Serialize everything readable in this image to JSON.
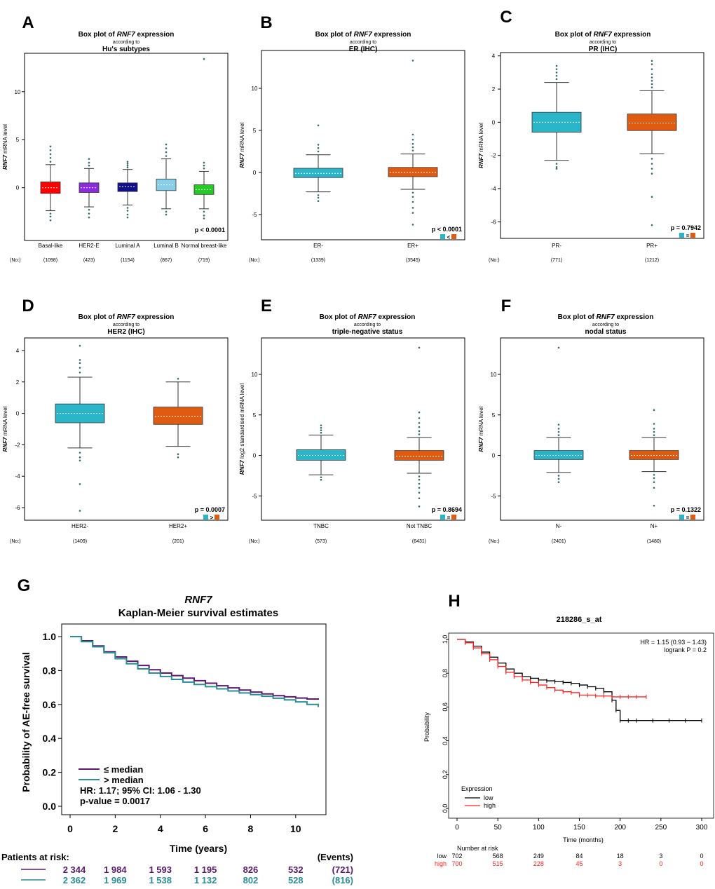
{
  "colors": {
    "red": "#ff0000",
    "purple": "#8a2be2",
    "navy": "#101090",
    "lightblue": "#87ceeb",
    "green": "#22cc22",
    "teal": "#2bb5c8",
    "orange": "#e05a10",
    "km_purple": "#5c1a6e",
    "km_teal": "#2a8e96",
    "km_red": "#ff2020",
    "km_black": "#000000"
  },
  "panel_letters": [
    "A",
    "B",
    "C",
    "D",
    "E",
    "F",
    "G",
    "H"
  ],
  "chart_data": [
    {
      "id": "A",
      "type": "box",
      "title_prefix": "Box plot of ",
      "gene": "RNF7",
      "title_suffix": " expression",
      "subtitle": "according to",
      "group": "Hu's subtypes",
      "ylabel_gene": "RNF7",
      "ylabel_rest": "mRNA level",
      "ylim": [
        -5.5,
        14
      ],
      "yticks": [
        0,
        5,
        10
      ],
      "categories": [
        "Basal-like",
        "HER2-E",
        "Luminal A",
        "Luminal B",
        "Normal breast-like"
      ],
      "counts": [
        "(1098)",
        "(423)",
        "(1154)",
        "(867)",
        "(719)"
      ],
      "fills": [
        "red",
        "purple",
        "navy",
        "lightblue",
        "green"
      ],
      "boxes": [
        {
          "q1": -0.6,
          "median": 0.0,
          "q3": 0.6,
          "wlo": -2.4,
          "whi": 2.4,
          "outHi": [
            2.7,
            3.1,
            3.5,
            3.9,
            4.3
          ],
          "outLo": [
            -2.7,
            -3.0,
            -3.4
          ]
        },
        {
          "q1": -0.5,
          "median": 0.0,
          "q3": 0.5,
          "wlo": -2.0,
          "whi": 2.0,
          "outHi": [
            2.3,
            2.6,
            3.0
          ],
          "outLo": [
            -2.3,
            -2.7,
            -3.1
          ]
        },
        {
          "q1": -0.4,
          "median": 0.1,
          "q3": 0.5,
          "wlo": -1.8,
          "whi": 1.9,
          "outHi": [
            2.1,
            2.3,
            2.5,
            2.7
          ],
          "outLo": [
            -2.1,
            -2.4,
            -2.8,
            -3.1
          ]
        },
        {
          "q1": -0.3,
          "median": 0.3,
          "q3": 0.9,
          "wlo": -2.2,
          "whi": 3.0,
          "outHi": [
            3.3,
            3.7,
            4.1,
            4.5
          ],
          "outLo": [
            -2.5,
            -2.8
          ]
        },
        {
          "q1": -0.7,
          "median": -0.2,
          "q3": 0.3,
          "wlo": -2.2,
          "whi": 1.7,
          "outHi": [
            2.0,
            2.3,
            2.6,
            13.4
          ],
          "outLo": [
            -2.5,
            -2.9,
            -3.2
          ]
        }
      ],
      "pvalue": "p < 0.0001",
      "cmp_sign": "",
      "no_label": "(No:)"
    },
    {
      "id": "B",
      "type": "box",
      "title_prefix": "Box plot of ",
      "gene": "RNF7",
      "title_suffix": " expression",
      "subtitle": "according to",
      "group": "ER (IHC)",
      "ylabel_gene": "RNF7",
      "ylabel_rest": "mRNA level",
      "ylim": [
        -8,
        14.5
      ],
      "yticks": [
        -5,
        0,
        5,
        10
      ],
      "categories": [
        "ER-",
        "ER+"
      ],
      "counts": [
        "(1339)",
        "(3545)"
      ],
      "fills": [
        "teal",
        "orange"
      ],
      "boxes": [
        {
          "q1": -0.6,
          "median": -0.1,
          "q3": 0.5,
          "wlo": -2.3,
          "whi": 2.1,
          "outHi": [
            2.5,
            2.9,
            3.3,
            5.6
          ],
          "outLo": [
            -2.7,
            -3.0,
            -3.4
          ]
        },
        {
          "q1": -0.5,
          "median": 0.0,
          "q3": 0.6,
          "wlo": -2.0,
          "whi": 2.2,
          "outHi": [
            2.6,
            3.0,
            3.4,
            3.9,
            4.5,
            13.3
          ],
          "outLo": [
            -2.4,
            -2.9,
            -3.5,
            -4.2,
            -4.8,
            -6.2
          ]
        }
      ],
      "pvalue": "p < 0.0001",
      "cmp_sign": "<",
      "no_label": "(No:)"
    },
    {
      "id": "C",
      "type": "box",
      "title_prefix": "Box plot of ",
      "gene": "RNF7",
      "title_suffix": " expression",
      "subtitle": "according to",
      "group": "PR (IHC)",
      "ylabel_gene": "RNF7",
      "ylabel_rest": "mRNA level",
      "ylim": [
        -7,
        4.2
      ],
      "yticks": [
        -6,
        -4,
        -2,
        0,
        2,
        4
      ],
      "categories": [
        "PR-",
        "PR+"
      ],
      "counts": [
        "(771)",
        "(1212)"
      ],
      "fills": [
        "teal",
        "orange"
      ],
      "boxes": [
        {
          "q1": -0.6,
          "median": 0.0,
          "q3": 0.6,
          "wlo": -2.3,
          "whi": 2.4,
          "outHi": [
            2.6,
            2.8,
            3.0,
            3.2,
            3.4
          ],
          "outLo": [
            -2.5,
            -2.7,
            -2.8
          ]
        },
        {
          "q1": -0.5,
          "median": -0.05,
          "q3": 0.5,
          "wlo": -1.9,
          "whi": 1.9,
          "outHi": [
            2.1,
            2.3,
            2.5,
            2.7,
            2.9,
            3.2,
            3.5,
            3.7
          ],
          "outLo": [
            -2.2,
            -2.5,
            -2.8,
            -3.1,
            -4.5,
            -6.2
          ]
        }
      ],
      "pvalue": "p = 0.7942",
      "cmp_sign": "=",
      "no_label": "(No:)"
    },
    {
      "id": "D",
      "type": "box",
      "title_prefix": "Box plot of ",
      "gene": "RNF7",
      "title_suffix": " expression",
      "subtitle": "according to",
      "group": "HER2 (IHC)",
      "ylabel_gene": "RNF7",
      "ylabel_rest": "mRNA level",
      "ylim": [
        -6.8,
        4.8
      ],
      "yticks": [
        -6,
        -4,
        -2,
        0,
        2,
        4
      ],
      "categories": [
        "HER2-",
        "HER2+"
      ],
      "counts": [
        "(1409)",
        "(201)"
      ],
      "fills": [
        "teal",
        "orange"
      ],
      "boxes": [
        {
          "q1": -0.6,
          "median": 0.0,
          "q3": 0.6,
          "wlo": -2.2,
          "whi": 2.3,
          "outHi": [
            2.6,
            2.9,
            3.2,
            3.4,
            4.3
          ],
          "outLo": [
            -2.5,
            -2.8,
            -3.0,
            -4.5,
            -6.2
          ]
        },
        {
          "q1": -0.7,
          "median": -0.2,
          "q3": 0.4,
          "wlo": -2.1,
          "whi": 2.0,
          "outHi": [
            2.2
          ],
          "outLo": [
            -2.6,
            -2.8
          ]
        }
      ],
      "pvalue": "p = 0.0007",
      "cmp_sign": ">",
      "no_label": "(No:)"
    },
    {
      "id": "E",
      "type": "box",
      "title_prefix": "Box plot of ",
      "gene": "RNF7",
      "title_suffix": " expression",
      "subtitle": "according to",
      "group": "triple-negative status",
      "ylabel_gene": "RNF7",
      "ylabel_rest": "log2 standardised mRNA level",
      "ylim": [
        -8,
        14.5
      ],
      "yticks": [
        -5,
        0,
        5,
        10
      ],
      "categories": [
        "TNBC",
        "Not TNBC"
      ],
      "counts": [
        "(573)",
        "(6431)"
      ],
      "fills": [
        "teal",
        "orange"
      ],
      "boxes": [
        {
          "q1": -0.6,
          "median": 0.0,
          "q3": 0.7,
          "wlo": -2.4,
          "whi": 2.5,
          "outHi": [
            2.8,
            3.1,
            3.4,
            3.7
          ],
          "outLo": [
            -2.7,
            -3.0
          ]
        },
        {
          "q1": -0.6,
          "median": -0.1,
          "q3": 0.6,
          "wlo": -2.2,
          "whi": 2.2,
          "outHi": [
            2.6,
            3.0,
            3.5,
            4.0,
            4.6,
            5.3,
            13.3
          ],
          "outLo": [
            -2.6,
            -3.0,
            -3.5,
            -4.0,
            -4.6,
            -5.3,
            -6.3
          ]
        }
      ],
      "pvalue": "p = 0.8694",
      "cmp_sign": "=",
      "no_label": "(No:)"
    },
    {
      "id": "F",
      "type": "box",
      "title_prefix": "Box plot of ",
      "gene": "RNF7",
      "title_suffix": " expression",
      "subtitle": "according to",
      "group": "nodal status",
      "ylabel_gene": "RNF7",
      "ylabel_rest": "mRNA level",
      "ylim": [
        -8,
        14.5
      ],
      "yticks": [
        -5,
        0,
        5,
        10
      ],
      "categories": [
        "N-",
        "N+"
      ],
      "counts": [
        "(2401)",
        "(1480)"
      ],
      "fills": [
        "teal",
        "orange"
      ],
      "boxes": [
        {
          "q1": -0.5,
          "median": 0.0,
          "q3": 0.6,
          "wlo": -2.1,
          "whi": 2.2,
          "outHi": [
            2.5,
            2.9,
            3.3,
            3.8,
            13.3
          ],
          "outLo": [
            -2.5,
            -2.9,
            -3.3
          ]
        },
        {
          "q1": -0.5,
          "median": 0.0,
          "q3": 0.6,
          "wlo": -2.0,
          "whi": 2.2,
          "outHi": [
            2.5,
            2.9,
            3.3,
            3.9,
            5.6
          ],
          "outLo": [
            -2.4,
            -2.8,
            -3.3,
            -4.0,
            -6.2
          ]
        }
      ],
      "pvalue": "p = 0.1322",
      "cmp_sign": "=",
      "no_label": "(No:)"
    },
    {
      "id": "G",
      "type": "line",
      "title_gene": "RNF7",
      "title": "Kaplan-Meier survival estimates",
      "xlabel": "Time (years)",
      "ylabel": "Probability of AE-free survival",
      "xlim": [
        0,
        11
      ],
      "ylim": [
        0,
        1
      ],
      "xticks": [
        0,
        2,
        4,
        6,
        8,
        10
      ],
      "yticks": [
        0.0,
        0.2,
        0.4,
        0.6,
        0.8,
        1.0
      ],
      "series": [
        {
          "name": "≤ median",
          "color": "km_purple",
          "x": [
            0,
            0.5,
            1,
            1.5,
            2,
            2.5,
            3,
            3.5,
            4,
            4.5,
            5,
            5.5,
            6,
            6.5,
            7,
            7.5,
            8,
            8.5,
            9,
            9.5,
            10,
            10.5,
            11
          ],
          "y": [
            1.0,
            0.975,
            0.945,
            0.91,
            0.88,
            0.855,
            0.83,
            0.805,
            0.785,
            0.77,
            0.755,
            0.74,
            0.725,
            0.71,
            0.698,
            0.685,
            0.673,
            0.662,
            0.652,
            0.645,
            0.638,
            0.632,
            0.628
          ]
        },
        {
          "name": "> median",
          "color": "km_teal",
          "x": [
            0,
            0.5,
            1,
            1.5,
            2,
            2.5,
            3,
            3.5,
            4,
            4.5,
            5,
            5.5,
            6,
            6.5,
            7,
            7.5,
            8,
            8.5,
            9,
            9.5,
            10,
            10.5,
            11
          ],
          "y": [
            1.0,
            0.97,
            0.94,
            0.905,
            0.87,
            0.84,
            0.81,
            0.785,
            0.765,
            0.748,
            0.732,
            0.718,
            0.705,
            0.692,
            0.68,
            0.668,
            0.658,
            0.648,
            0.637,
            0.627,
            0.615,
            0.6,
            0.585
          ]
        }
      ],
      "stats": [
        "HR: 1.17; 95% CI: 1.06 - 1.30",
        "p-value = 0.0017"
      ],
      "risk_title": "Patients at risk:",
      "events_title": "(Events)",
      "risk_rows": [
        {
          "color": "km_purple",
          "values": [
            "2 344",
            "1 984",
            "1 593",
            "1 195",
            "826",
            "532"
          ],
          "events": "(721)"
        },
        {
          "color": "km_teal",
          "values": [
            "2 362",
            "1 969",
            "1 538",
            "1 132",
            "802",
            "528"
          ],
          "events": "(816)"
        }
      ]
    },
    {
      "id": "H",
      "type": "line",
      "title": "218286_s_at",
      "xlabel": "Time (months)",
      "ylabel": "Probability",
      "xlim": [
        0,
        300
      ],
      "ylim": [
        0,
        1
      ],
      "xticks": [
        0,
        50,
        100,
        150,
        200,
        250,
        300
      ],
      "yticks": [
        0.0,
        0.2,
        0.4,
        0.6,
        0.8,
        1.0
      ],
      "series": [
        {
          "name": "low",
          "color": "km_black",
          "x": [
            0,
            10,
            20,
            30,
            40,
            50,
            60,
            70,
            80,
            90,
            100,
            110,
            120,
            130,
            140,
            150,
            160,
            170,
            180,
            190,
            195,
            200,
            210,
            220,
            240,
            260,
            280,
            300
          ],
          "y": [
            1.0,
            0.985,
            0.96,
            0.925,
            0.895,
            0.86,
            0.825,
            0.8,
            0.78,
            0.77,
            0.76,
            0.755,
            0.75,
            0.745,
            0.74,
            0.73,
            0.72,
            0.71,
            0.69,
            0.64,
            0.58,
            0.52,
            0.52,
            0.52,
            0.52,
            0.52,
            0.52,
            0.52
          ]
        },
        {
          "name": "high",
          "color": "km_red",
          "x": [
            0,
            10,
            20,
            30,
            40,
            50,
            60,
            70,
            80,
            90,
            100,
            110,
            120,
            130,
            140,
            150,
            160,
            170,
            180,
            190,
            200,
            210,
            220,
            232
          ],
          "y": [
            1.0,
            0.98,
            0.95,
            0.915,
            0.88,
            0.84,
            0.805,
            0.78,
            0.76,
            0.745,
            0.73,
            0.715,
            0.7,
            0.69,
            0.685,
            0.67,
            0.67,
            0.665,
            0.665,
            0.66,
            0.66,
            0.66,
            0.66,
            0.66
          ]
        }
      ],
      "stats": [
        "HR = 1.15 (0.93 − 1.43)",
        "logrank P = 0.2"
      ],
      "legend_title": "Expression",
      "risk_title": "Number at risk",
      "risk_rows": [
        {
          "label": "low",
          "color": "km_black",
          "values": [
            "702",
            "568",
            "249",
            "84",
            "18",
            "3",
            "0"
          ]
        },
        {
          "label": "high",
          "color": "km_red",
          "values": [
            "700",
            "515",
            "228",
            "45",
            "3",
            "0",
            "0"
          ]
        }
      ]
    }
  ]
}
